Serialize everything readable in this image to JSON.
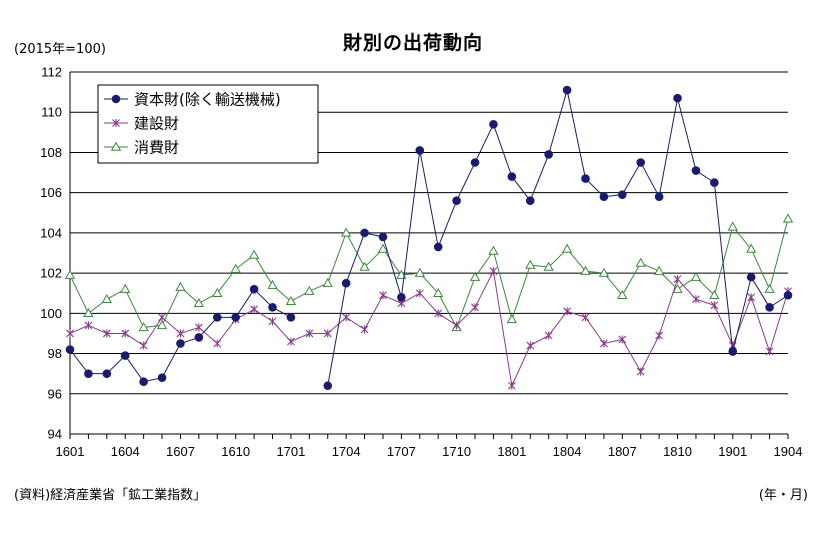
{
  "title": "財別の出荷動向",
  "unit_label": "(2015年=100)",
  "source_label": "(資料)経済産業省「鉱工業指数」",
  "x_unit_label": "(年・月)",
  "chart_data": {
    "type": "line",
    "x": [
      "1601",
      "1602",
      "1603",
      "1604",
      "1605",
      "1606",
      "1607",
      "1608",
      "1609",
      "1610",
      "1611",
      "1612",
      "1701",
      "1702",
      "1703",
      "1704",
      "1705",
      "1706",
      "1707",
      "1708",
      "1709",
      "1710",
      "1711",
      "1712",
      "1801",
      "1802",
      "1803",
      "1804",
      "1805",
      "1806",
      "1807",
      "1808",
      "1809",
      "1810",
      "1811",
      "1812",
      "1901",
      "1902",
      "1903",
      "1904"
    ],
    "x_tick_labels": [
      "1601",
      "1604",
      "1607",
      "1610",
      "1701",
      "1704",
      "1707",
      "1710",
      "1801",
      "1804",
      "1807",
      "1810",
      "1901",
      "1904"
    ],
    "y_ticks": [
      94,
      96,
      98,
      100,
      102,
      104,
      106,
      108,
      110,
      112
    ],
    "ylim": [
      94,
      112
    ],
    "grid": true,
    "legend_position": "top-left",
    "series": [
      {
        "name": "資本財(除く輸送機械)",
        "color": "#1a1a6e",
        "marker": "circle",
        "values": [
          98.2,
          97.0,
          97.0,
          97.9,
          96.6,
          96.8,
          98.5,
          98.8,
          99.8,
          99.8,
          101.2,
          100.3,
          99.8,
          null,
          96.4,
          101.5,
          104.0,
          103.8,
          100.8,
          108.1,
          103.3,
          105.6,
          107.5,
          109.4,
          106.8,
          105.6,
          107.9,
          111.1,
          106.7,
          105.8,
          105.9,
          107.5,
          105.8,
          110.7,
          107.1,
          106.5,
          98.1,
          101.8,
          100.3,
          100.9
        ]
      },
      {
        "name": "建設財",
        "color": "#8b3a8b",
        "marker": "x",
        "values": [
          99.0,
          99.4,
          99.0,
          99.0,
          98.4,
          99.8,
          99.0,
          99.3,
          98.5,
          99.7,
          100.2,
          99.6,
          98.6,
          99.0,
          99.0,
          99.8,
          99.2,
          100.9,
          100.5,
          101.0,
          100.0,
          99.4,
          100.3,
          102.1,
          96.4,
          98.4,
          98.9,
          100.1,
          99.8,
          98.5,
          98.7,
          97.1,
          98.9,
          101.7,
          100.7,
          100.4,
          98.4,
          100.8,
          98.1,
          101.1
        ]
      },
      {
        "name": "消費財",
        "color": "#3a8a3a",
        "marker": "triangle",
        "values": [
          101.9,
          100.0,
          100.7,
          101.2,
          99.3,
          99.4,
          101.3,
          100.5,
          101.0,
          102.2,
          102.9,
          101.4,
          100.6,
          101.1,
          101.5,
          104.0,
          102.3,
          103.2,
          101.9,
          102.0,
          101.0,
          99.3,
          101.8,
          103.1,
          99.7,
          102.4,
          102.3,
          103.2,
          102.1,
          102.0,
          100.9,
          102.5,
          102.1,
          101.2,
          101.8,
          100.9,
          104.3,
          103.2,
          101.2,
          104.7
        ]
      }
    ]
  }
}
